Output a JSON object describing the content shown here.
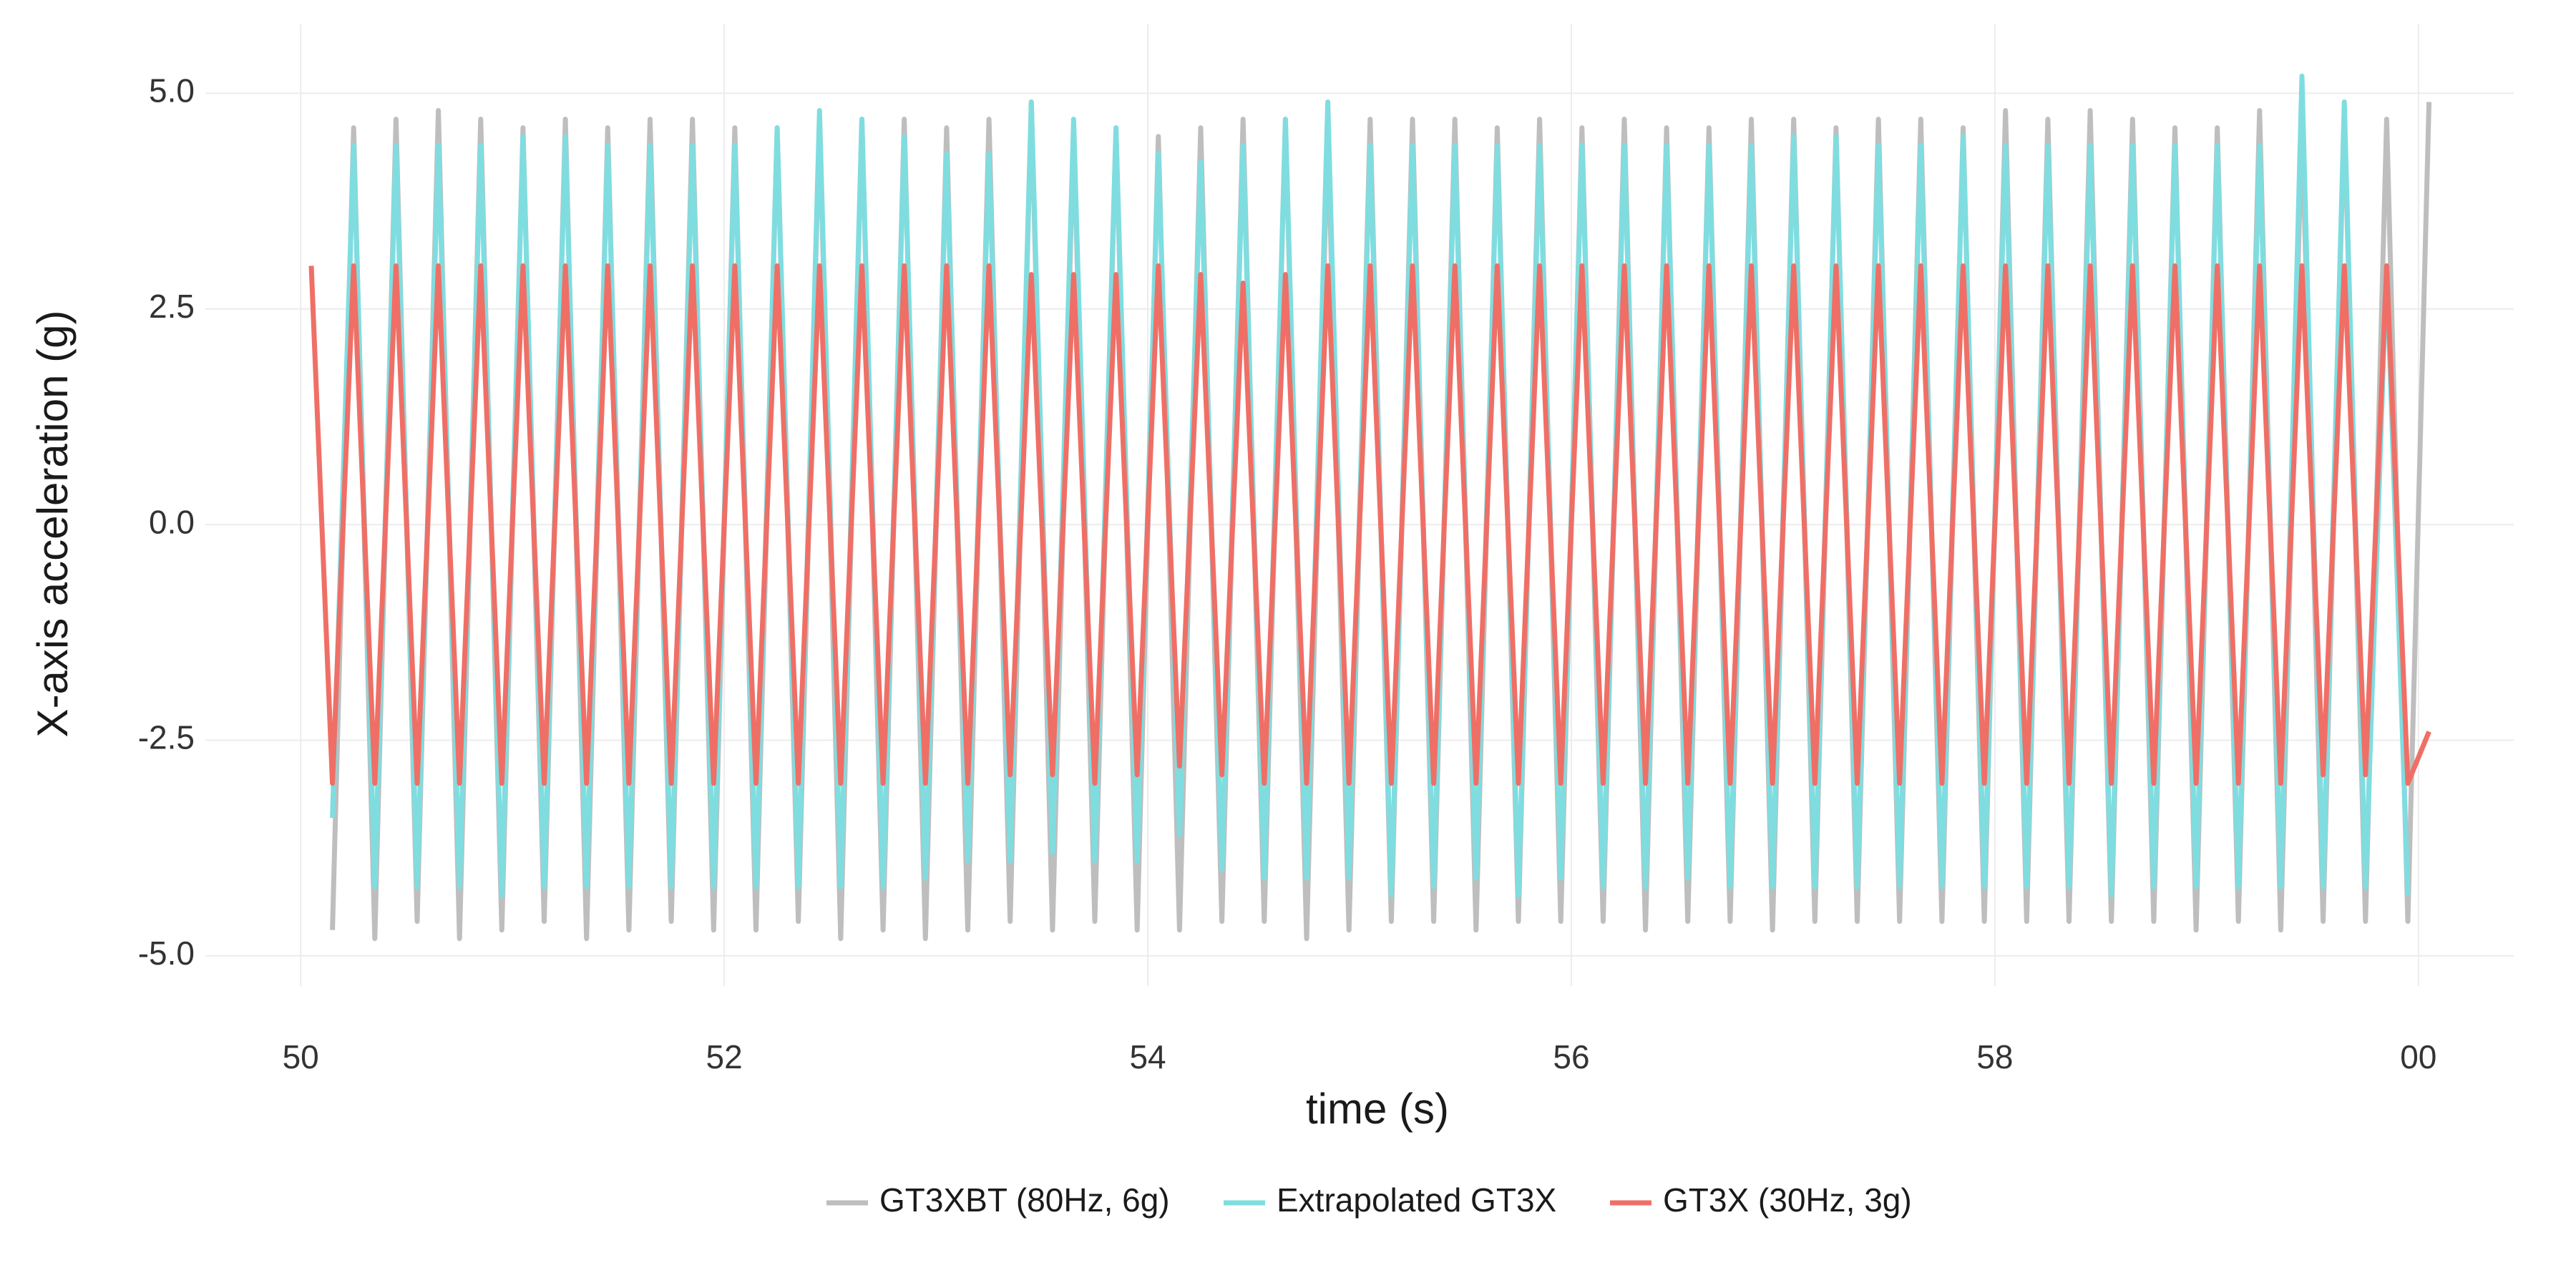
{
  "chart_data": {
    "type": "line",
    "xlabel": "time (s)",
    "ylabel": "X-axis acceleration (g)",
    "x": [
      50.05,
      50.15,
      50.25,
      50.35,
      50.45,
      50.55,
      50.65,
      50.75,
      50.85,
      50.95,
      51.05,
      51.15,
      51.25,
      51.35,
      51.45,
      51.55,
      51.65,
      51.75,
      51.85,
      51.95,
      52.05,
      52.15,
      52.25,
      52.35,
      52.45,
      52.55,
      52.65,
      52.75,
      52.85,
      52.95,
      53.05,
      53.15,
      53.25,
      53.35,
      53.45,
      53.55,
      53.65,
      53.75,
      53.85,
      53.95,
      54.05,
      54.15,
      54.25,
      54.35,
      54.45,
      54.55,
      54.65,
      54.75,
      54.85,
      54.95,
      55.05,
      55.15,
      55.25,
      55.35,
      55.45,
      55.55,
      55.65,
      55.75,
      55.85,
      55.95,
      56.05,
      56.15,
      56.25,
      56.35,
      56.45,
      56.55,
      56.65,
      56.75,
      56.85,
      56.95,
      57.05,
      57.15,
      57.25,
      57.35,
      57.45,
      57.55,
      57.65,
      57.75,
      57.85,
      57.95,
      58.05,
      58.15,
      58.25,
      58.35,
      58.45,
      58.55,
      58.65,
      58.75,
      58.85,
      58.95,
      59.05,
      59.15,
      59.25,
      59.35,
      59.45,
      59.55,
      59.65,
      59.75,
      59.85,
      59.95,
      60.05
    ],
    "series": [
      {
        "name": "GT3XBT (80Hz, 6g)",
        "color": "#bebebe",
        "values": [
          null,
          -4.7,
          4.6,
          -4.8,
          4.7,
          -4.6,
          4.8,
          -4.8,
          4.7,
          -4.7,
          4.6,
          -4.6,
          4.7,
          -4.8,
          4.6,
          -4.7,
          4.7,
          -4.6,
          4.7,
          -4.7,
          4.6,
          -4.7,
          4.6,
          -4.6,
          4.7,
          -4.8,
          4.7,
          -4.7,
          4.7,
          -4.8,
          4.6,
          -4.7,
          4.7,
          -4.6,
          4.9,
          -4.7,
          4.6,
          -4.6,
          4.6,
          -4.7,
          4.5,
          -4.7,
          4.6,
          -4.6,
          4.7,
          -4.6,
          4.7,
          -4.8,
          4.6,
          -4.7,
          4.7,
          -4.6,
          4.7,
          -4.6,
          4.7,
          -4.7,
          4.6,
          -4.6,
          4.7,
          -4.6,
          4.6,
          -4.6,
          4.7,
          -4.7,
          4.6,
          -4.6,
          4.6,
          -4.6,
          4.7,
          -4.7,
          4.7,
          -4.6,
          4.6,
          -4.6,
          4.7,
          -4.6,
          4.7,
          -4.6,
          4.6,
          -4.6,
          4.8,
          -4.6,
          4.7,
          -4.6,
          4.8,
          -4.6,
          4.7,
          -4.6,
          4.6,
          -4.7,
          4.6,
          -4.6,
          4.8,
          -4.7,
          4.7,
          -4.6,
          4.8,
          -4.6,
          4.7,
          -4.6,
          4.9
        ]
      },
      {
        "name": "Extrapolated GT3X",
        "color": "#7fdde0",
        "values": [
          null,
          -3.4,
          4.4,
          -4.2,
          4.4,
          -4.2,
          4.4,
          -4.2,
          4.4,
          -4.3,
          4.5,
          -4.2,
          4.5,
          -4.2,
          4.4,
          -4.2,
          4.4,
          -4.2,
          4.4,
          -4.2,
          4.4,
          -4.2,
          4.6,
          -4.2,
          4.8,
          -4.2,
          4.7,
          -4.2,
          4.5,
          -4.1,
          4.3,
          -3.9,
          4.3,
          -3.9,
          4.9,
          -3.8,
          4.7,
          -3.9,
          4.6,
          -3.9,
          4.3,
          -3.6,
          4.2,
          -4.0,
          4.4,
          -4.1,
          4.7,
          -4.1,
          4.9,
          -4.1,
          4.4,
          -4.3,
          4.4,
          -4.2,
          4.4,
          -4.1,
          4.4,
          -4.3,
          4.4,
          -4.1,
          4.4,
          -4.2,
          4.4,
          -4.2,
          4.4,
          -4.1,
          4.4,
          -4.2,
          4.4,
          -4.2,
          4.5,
          -4.2,
          4.5,
          -4.2,
          4.4,
          -4.2,
          4.4,
          -4.2,
          4.5,
          -4.2,
          4.4,
          -4.2,
          4.4,
          -4.2,
          4.4,
          -4.3,
          4.4,
          -4.2,
          4.4,
          -4.2,
          4.4,
          -4.2,
          4.4,
          -4.2,
          5.2,
          -4.2,
          4.9,
          -4.2,
          3.0,
          -4.3,
          null
        ]
      },
      {
        "name": "GT3X (30Hz, 3g)",
        "color": "#ef6f66",
        "values": [
          3,
          -3,
          3,
          -3,
          3,
          -3,
          3,
          -3,
          3,
          -3,
          3,
          -3,
          3,
          -3,
          3,
          -3,
          3,
          -3,
          3,
          -3,
          3,
          -3,
          3,
          -3,
          3,
          -3,
          3,
          -3,
          3,
          -3,
          3,
          -3,
          3,
          -2.9,
          2.9,
          -2.9,
          2.9,
          -3,
          2.9,
          -2.9,
          3,
          -2.8,
          2.9,
          -2.9,
          2.8,
          -3,
          2.9,
          -3,
          3,
          -3,
          3,
          -3,
          3,
          -3,
          3,
          -3,
          3,
          -3,
          3,
          -3,
          3,
          -3,
          3,
          -3,
          3,
          -3,
          3,
          -3,
          3,
          -3,
          3,
          -3,
          3,
          -3,
          3,
          -3,
          3,
          -3,
          3,
          -3,
          3,
          -3,
          3,
          -3,
          3,
          -3,
          3,
          -3,
          3,
          -3,
          3,
          -3,
          3,
          -3,
          3,
          -2.9,
          3,
          -2.9,
          3,
          -3,
          -2.4
        ]
      }
    ],
    "xlim": [
      49.55,
      60.45
    ],
    "ylim": [
      -5.35,
      5.8
    ],
    "xticks": [
      50,
      52,
      54,
      56,
      58,
      {
        "value": 60,
        "label": "00"
      }
    ],
    "yticks": [
      {
        "value": -5,
        "label": "-5.0"
      },
      -2.5,
      {
        "value": 0,
        "label": "0.0"
      },
      2.5,
      {
        "value": 5,
        "label": "5.0"
      }
    ],
    "grid": true,
    "legend_position": "bottom"
  }
}
